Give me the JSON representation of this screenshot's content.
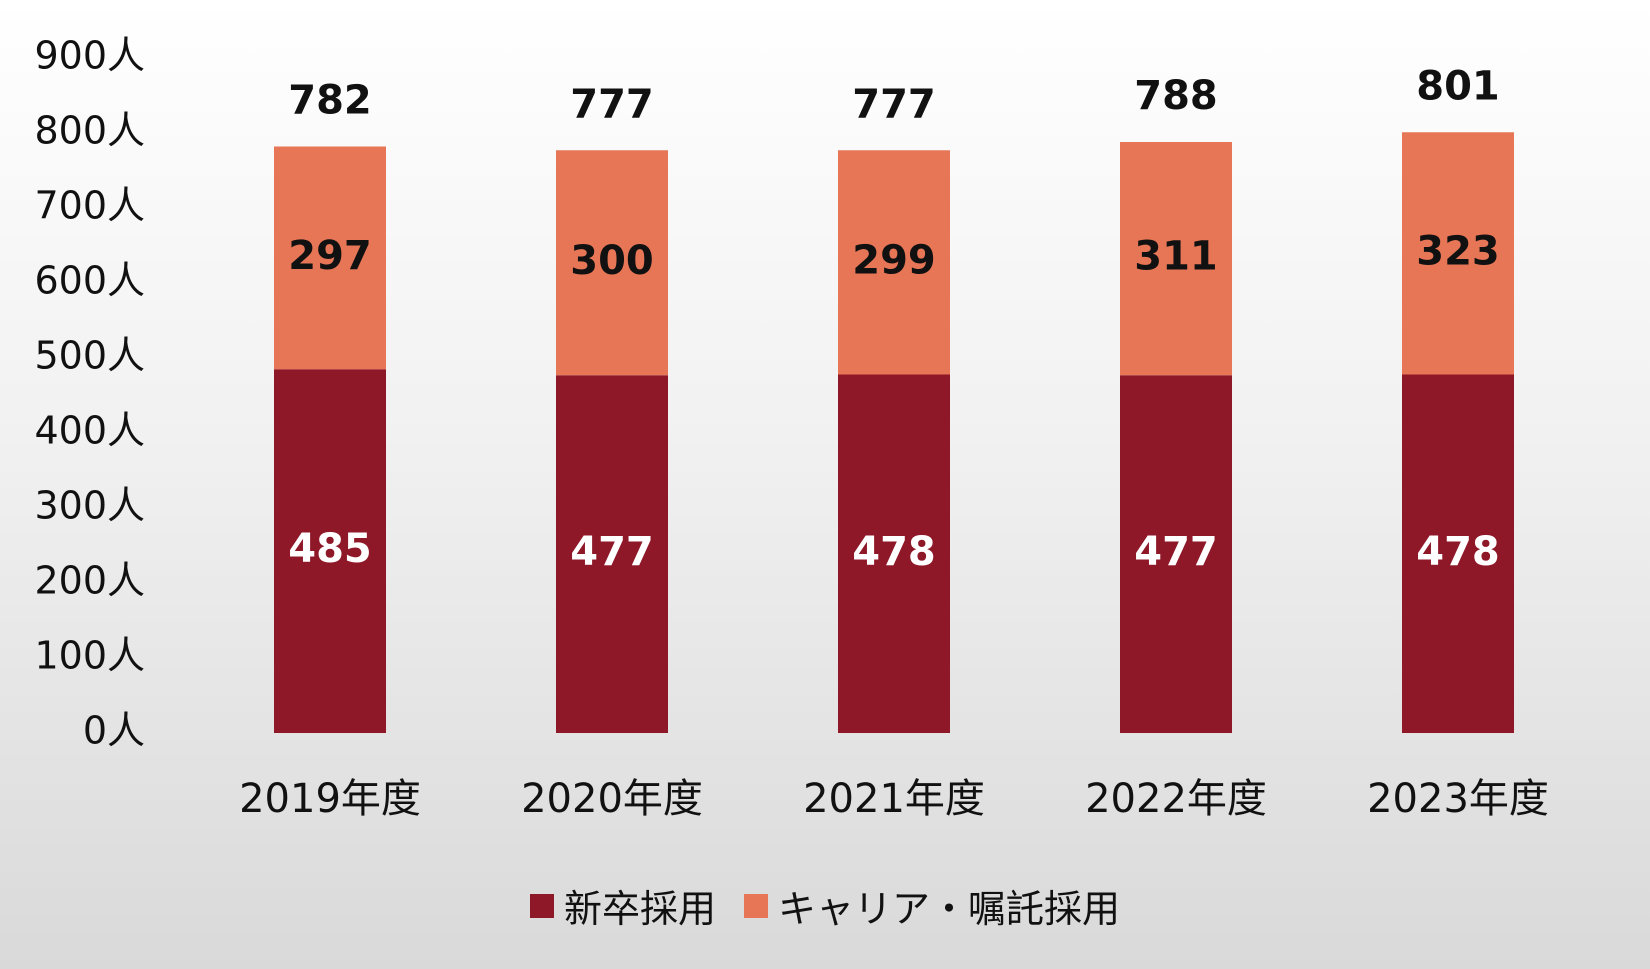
{
  "chart_data": {
    "type": "bar",
    "stacked": true,
    "categories": [
      "2019年度",
      "2020年度",
      "2021年度",
      "2022年度",
      "2023年度"
    ],
    "series": [
      {
        "name": "新卒採用",
        "values": [
          485,
          477,
          478,
          477,
          478
        ],
        "color": "#8e1728"
      },
      {
        "name": "キャリア・嘱託採用",
        "values": [
          297,
          300,
          299,
          311,
          323
        ],
        "color": "#e77656"
      }
    ],
    "totals": [
      782,
      777,
      777,
      788,
      801
    ],
    "ylim": [
      0,
      900
    ],
    "yticks": [
      0,
      100,
      200,
      300,
      400,
      500,
      600,
      700,
      800,
      900
    ],
    "ytick_suffix": "人",
    "grid": false,
    "legend_position": "bottom"
  }
}
